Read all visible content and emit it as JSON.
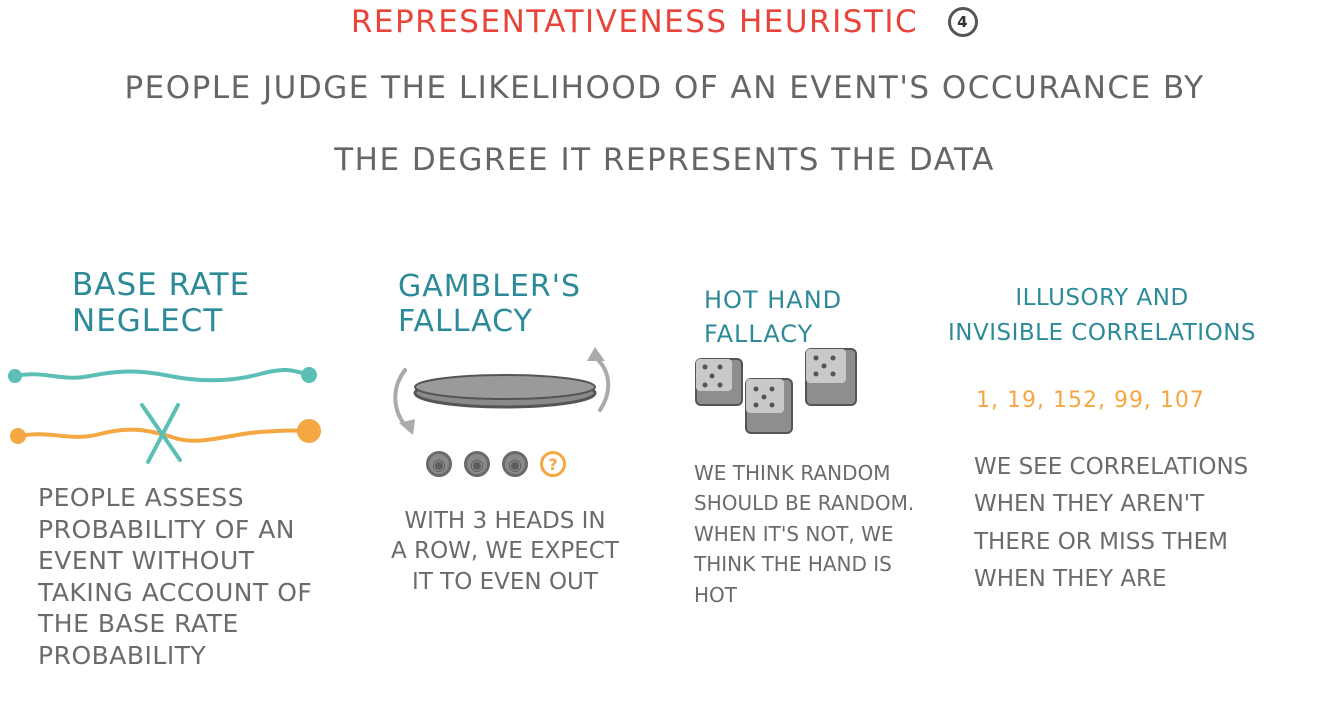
{
  "header": {
    "title": "REPRESENTATIVENESS HEURISTIC",
    "badge": "4",
    "subtitle_line1": "PEOPLE JUDGE THE LIKELIHOOD OF AN EVENT'S OCCURANCE BY",
    "subtitle_line2": "THE DEGREE IT REPRESENTS THE DATA"
  },
  "colors": {
    "title": "#e8443a",
    "heading": "#2d8a98",
    "teal_line": "#5bbfb5",
    "orange": "#f4a742",
    "text": "#6b6b6b"
  },
  "sections": {
    "base_rate": {
      "heading_line1": "BASE RATE",
      "heading_line2": "NEGLECT",
      "body": [
        "PEOPLE ASSESS",
        "PROBABILITY OF AN",
        "EVENT WITHOUT",
        "TAKING ACCOUNT OF",
        "THE BASE RATE",
        "PROBABILITY"
      ]
    },
    "gamblers": {
      "heading_line1": "GAMBLER'S",
      "heading_line2": "FALLACY",
      "coin_question": "?",
      "body": [
        "WITH 3 HEADS IN",
        "A ROW, WE EXPECT",
        "IT TO EVEN OUT"
      ]
    },
    "hot_hand": {
      "heading_line1": "HOT HAND",
      "heading_line2": "FALLACY",
      "body": [
        "WE THINK RANDOM",
        "SHOULD BE RANDOM.",
        "WHEN IT'S NOT, WE",
        "THINK THE HAND IS",
        "HOT"
      ]
    },
    "illusory": {
      "heading_line1": "ILLUSORY AND",
      "heading_line2": "INVISIBLE CORRELATIONS",
      "numbers": "1, 19, 152, 99, 107",
      "body": [
        "WE SEE CORRELATIONS",
        "WHEN THEY AREN'T",
        "THERE OR MISS THEM",
        "WHEN THEY ARE"
      ]
    }
  }
}
